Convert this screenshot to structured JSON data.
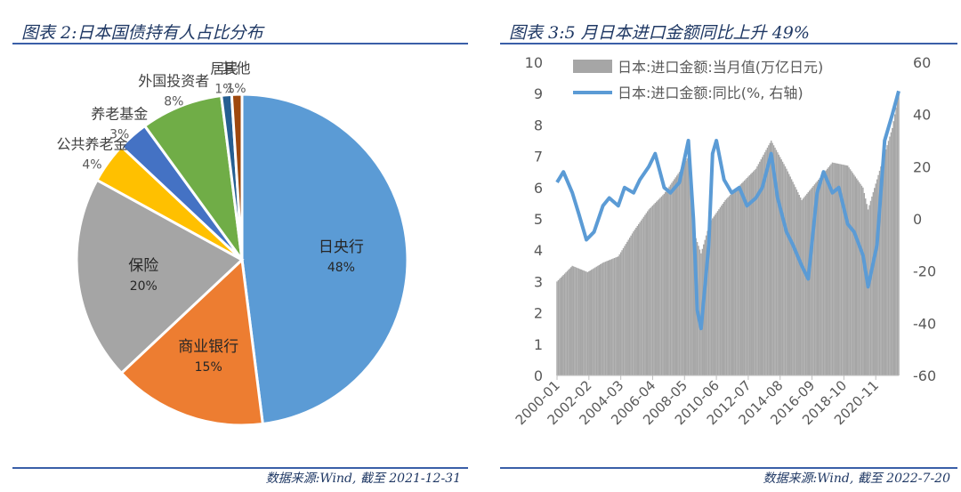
{
  "colors": {
    "title": "#1f3864",
    "rule": "#3a5fa8",
    "pie": [
      "#5b9bd5",
      "#ed7d31",
      "#a5a5a5",
      "#ffc000",
      "#4472c4",
      "#70ad47",
      "#255e91",
      "#9e480e"
    ],
    "bar_series": "#a6a6a6",
    "line_series": "#5b9bd5"
  },
  "left_panel": {
    "title": "图表 2:日本国债持有人占比分布",
    "source": "数据来源:Wind, 截至 2021-12-31"
  },
  "right_panel": {
    "title": "图表 3:5 月日本进口金额同比上升 49%",
    "source": "数据来源:Wind, 截至 2022-7-20"
  },
  "chart_data": [
    {
      "type": "pie",
      "categories": [
        "日央行",
        "商业银行",
        "保险",
        "公共养老金",
        "养老基金",
        "外国投资者",
        "居民",
        "其他"
      ],
      "values": [
        48,
        15,
        20,
        4,
        3,
        8,
        1,
        1
      ],
      "value_labels": [
        "48%",
        "15%",
        "20%",
        "4%",
        "3%",
        "8%",
        "1%",
        "1%"
      ]
    },
    {
      "type": "bar+line",
      "x_ticks": [
        "2000-01",
        "2002-02",
        "2004-03",
        "2006-04",
        "2008-05",
        "2010-06",
        "2012-07",
        "2014-08",
        "2016-09",
        "2018-10",
        "2020-11"
      ],
      "x_range": [
        "2000-01",
        "2022-05"
      ],
      "ylim_left": [
        0,
        10
      ],
      "yticks_left": [
        0,
        1,
        2,
        3,
        4,
        5,
        6,
        7,
        8,
        9,
        10
      ],
      "ylim_right": [
        -60,
        60
      ],
      "yticks_right": [
        -60,
        -40,
        -20,
        0,
        20,
        40,
        60
      ],
      "legend_position": "top",
      "series": [
        {
          "name": "日本:进口金额:当月值(万亿日元)",
          "kind": "bar",
          "axis": "left",
          "points": [
            [
              "2000-01",
              3.0
            ],
            [
              "2001-01",
              3.5
            ],
            [
              "2002-01",
              3.3
            ],
            [
              "2003-01",
              3.6
            ],
            [
              "2004-01",
              3.8
            ],
            [
              "2005-01",
              4.6
            ],
            [
              "2006-01",
              5.3
            ],
            [
              "2007-01",
              5.8
            ],
            [
              "2008-01",
              6.5
            ],
            [
              "2008-08",
              7.0
            ],
            [
              "2009-01",
              4.5
            ],
            [
              "2009-06",
              3.9
            ],
            [
              "2010-01",
              4.9
            ],
            [
              "2011-01",
              5.6
            ],
            [
              "2012-01",
              6.1
            ],
            [
              "2013-01",
              6.6
            ],
            [
              "2014-01",
              7.5
            ],
            [
              "2015-01",
              6.6
            ],
            [
              "2016-01",
              5.6
            ],
            [
              "2017-01",
              6.2
            ],
            [
              "2018-01",
              6.8
            ],
            [
              "2019-01",
              6.7
            ],
            [
              "2020-01",
              6.0
            ],
            [
              "2020-05",
              5.3
            ],
            [
              "2021-01",
              6.4
            ],
            [
              "2021-12",
              7.9
            ],
            [
              "2022-05",
              9.0
            ]
          ]
        },
        {
          "name": "日本:进口金额:同比(%, 右轴)",
          "kind": "line",
          "axis": "right",
          "points": [
            [
              "2000-01",
              14
            ],
            [
              "2000-06",
              18
            ],
            [
              "2001-01",
              10
            ],
            [
              "2001-06",
              2
            ],
            [
              "2001-12",
              -8
            ],
            [
              "2002-06",
              -5
            ],
            [
              "2003-01",
              5
            ],
            [
              "2003-06",
              8
            ],
            [
              "2004-01",
              5
            ],
            [
              "2004-06",
              12
            ],
            [
              "2005-01",
              10
            ],
            [
              "2005-06",
              15
            ],
            [
              "2006-01",
              20
            ],
            [
              "2006-06",
              25
            ],
            [
              "2007-01",
              12
            ],
            [
              "2007-06",
              10
            ],
            [
              "2008-01",
              14
            ],
            [
              "2008-08",
              30
            ],
            [
              "2008-12",
              0
            ],
            [
              "2009-03",
              -35
            ],
            [
              "2009-06",
              -42
            ],
            [
              "2009-12",
              -10
            ],
            [
              "2010-03",
              25
            ],
            [
              "2010-06",
              30
            ],
            [
              "2010-12",
              15
            ],
            [
              "2011-06",
              10
            ],
            [
              "2011-12",
              12
            ],
            [
              "2012-06",
              5
            ],
            [
              "2013-01",
              8
            ],
            [
              "2013-06",
              12
            ],
            [
              "2014-01",
              25
            ],
            [
              "2014-06",
              8
            ],
            [
              "2015-01",
              -5
            ],
            [
              "2015-06",
              -10
            ],
            [
              "2016-01",
              -18
            ],
            [
              "2016-06",
              -23
            ],
            [
              "2017-01",
              10
            ],
            [
              "2017-06",
              18
            ],
            [
              "2018-01",
              10
            ],
            [
              "2018-06",
              12
            ],
            [
              "2019-01",
              -2
            ],
            [
              "2019-06",
              -5
            ],
            [
              "2020-01",
              -14
            ],
            [
              "2020-05",
              -26
            ],
            [
              "2020-12",
              -10
            ],
            [
              "2021-06",
              30
            ],
            [
              "2021-12",
              40
            ],
            [
              "2022-05",
              49
            ]
          ]
        }
      ]
    }
  ]
}
